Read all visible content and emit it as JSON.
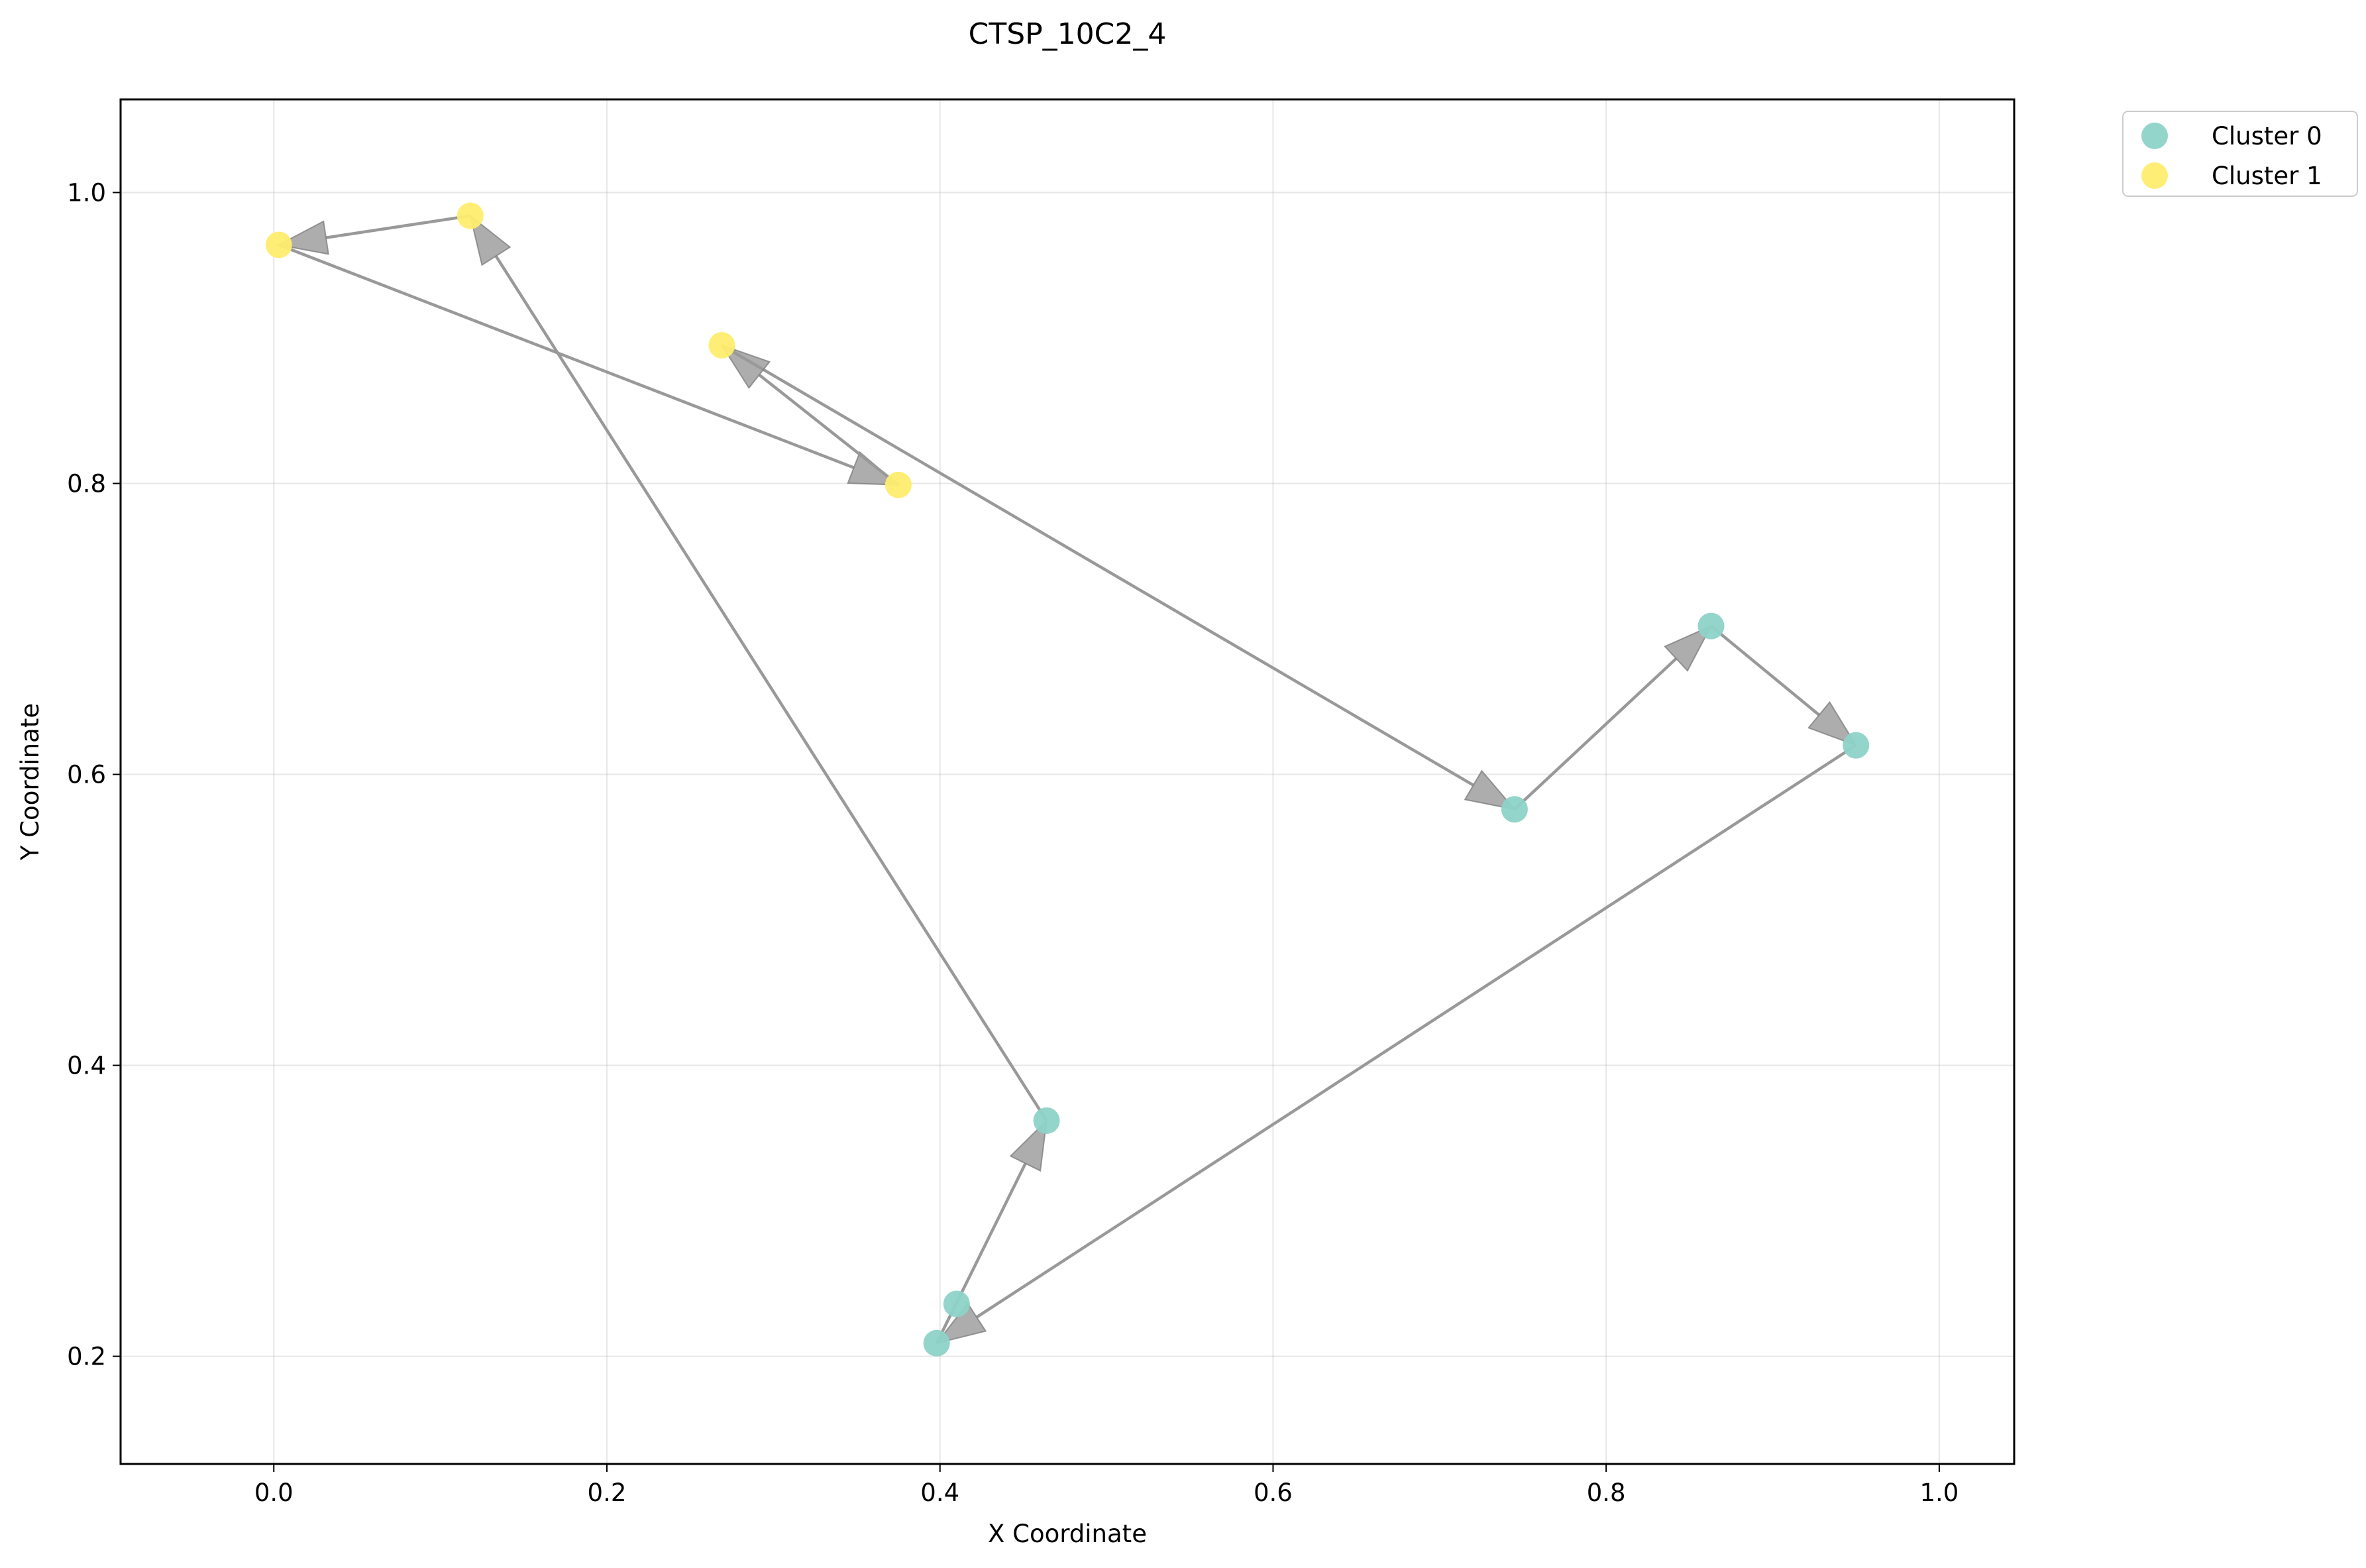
{
  "chart_data": {
    "type": "scatter",
    "title": "CTSP_10C2_4",
    "xlabel": "X Coordinate",
    "ylabel": "Y Coordinate",
    "xlim": [
      -0.092,
      1.045
    ],
    "ylim": [
      0.126,
      1.064
    ],
    "x_ticks": [
      "0.0",
      "0.2",
      "0.4",
      "0.6",
      "0.8",
      "1.0"
    ],
    "y_ticks": [
      "0.2",
      "0.4",
      "0.6",
      "0.8",
      "1.0"
    ],
    "grid": true,
    "legend_position": "outside top-right",
    "series": [
      {
        "name": "Cluster 0",
        "color": "#8dd3c7",
        "points": [
          {
            "x": 0.745,
            "y": 0.576
          },
          {
            "x": 0.863,
            "y": 0.702
          },
          {
            "x": 0.95,
            "y": 0.62
          },
          {
            "x": 0.398,
            "y": 0.209
          },
          {
            "x": 0.41,
            "y": 0.236
          },
          {
            "x": 0.464,
            "y": 0.362
          }
        ]
      },
      {
        "name": "Cluster 1",
        "color": "#ffed6f",
        "points": [
          {
            "x": 0.118,
            "y": 0.984
          },
          {
            "x": 0.003,
            "y": 0.964
          },
          {
            "x": 0.375,
            "y": 0.799
          },
          {
            "x": 0.269,
            "y": 0.895
          }
        ]
      }
    ],
    "route": {
      "color": "#999999",
      "points": [
        {
          "x": 0.269,
          "y": 0.895
        },
        {
          "x": 0.745,
          "y": 0.576
        },
        {
          "x": 0.863,
          "y": 0.702
        },
        {
          "x": 0.95,
          "y": 0.62
        },
        {
          "x": 0.398,
          "y": 0.209
        },
        {
          "x": 0.464,
          "y": 0.362
        },
        {
          "x": 0.118,
          "y": 0.984
        },
        {
          "x": 0.003,
          "y": 0.964
        },
        {
          "x": 0.375,
          "y": 0.799
        },
        {
          "x": 0.269,
          "y": 0.895
        }
      ]
    }
  }
}
